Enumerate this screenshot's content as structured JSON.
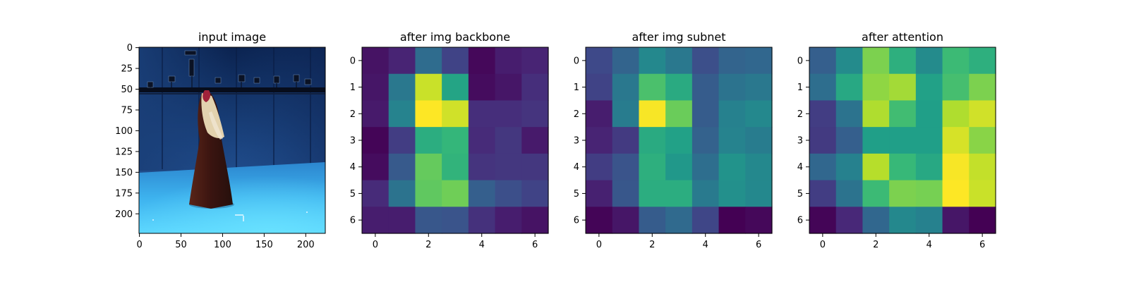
{
  "chart_data": [
    {
      "type": "image",
      "title": "input image",
      "x_ticks": [
        "0",
        "50",
        "100",
        "150",
        "200"
      ],
      "x_tick_values": [
        0,
        50,
        100,
        150,
        200
      ],
      "y_ticks": [
        "0",
        "25",
        "50",
        "75",
        "100",
        "125",
        "150",
        "175",
        "200"
      ],
      "y_tick_values": [
        0,
        25,
        50,
        75,
        100,
        125,
        150,
        175,
        200
      ],
      "extent": [
        -0.5,
        223.5,
        223.5,
        -0.5
      ],
      "colors": {
        "wall_dark": "#0e2a5a",
        "wall_light": "#23508f",
        "floor_near": "#59d8ff",
        "floor_far": "#2f8fd6",
        "figure": "#3a1410",
        "hair": "#e8d6b4",
        "rig": "#070d1c"
      }
    },
    {
      "type": "heatmap",
      "title": "after img backbone",
      "x_ticks": [
        "0",
        "2",
        "4",
        "6"
      ],
      "y_ticks": [
        "0",
        "1",
        "2",
        "3",
        "4",
        "5",
        "6"
      ],
      "values": [
        [
          0.05,
          0.1,
          0.35,
          0.2,
          0.02,
          0.08,
          0.1
        ],
        [
          0.06,
          0.4,
          0.92,
          0.58,
          0.03,
          0.06,
          0.13
        ],
        [
          0.07,
          0.45,
          1.0,
          0.93,
          0.13,
          0.13,
          0.15
        ],
        [
          0.01,
          0.18,
          0.62,
          0.66,
          0.12,
          0.16,
          0.07
        ],
        [
          0.03,
          0.28,
          0.76,
          0.65,
          0.15,
          0.16,
          0.16
        ],
        [
          0.12,
          0.38,
          0.75,
          0.78,
          0.3,
          0.24,
          0.2
        ],
        [
          0.08,
          0.08,
          0.27,
          0.26,
          0.14,
          0.08,
          0.05
        ]
      ]
    },
    {
      "type": "heatmap",
      "title": "after img subnet",
      "x_ticks": [
        "0",
        "2",
        "4",
        "6"
      ],
      "y_ticks": [
        "0",
        "1",
        "2",
        "3",
        "4",
        "5",
        "6"
      ],
      "values": [
        [
          0.22,
          0.32,
          0.47,
          0.4,
          0.24,
          0.32,
          0.33
        ],
        [
          0.2,
          0.4,
          0.71,
          0.61,
          0.29,
          0.38,
          0.4
        ],
        [
          0.08,
          0.42,
          0.99,
          0.77,
          0.29,
          0.44,
          0.47
        ],
        [
          0.1,
          0.17,
          0.61,
          0.57,
          0.31,
          0.45,
          0.42
        ],
        [
          0.18,
          0.26,
          0.63,
          0.53,
          0.36,
          0.51,
          0.47
        ],
        [
          0.09,
          0.27,
          0.62,
          0.62,
          0.41,
          0.5,
          0.47
        ],
        [
          0.01,
          0.06,
          0.29,
          0.34,
          0.21,
          0.0,
          0.02
        ]
      ]
    },
    {
      "type": "heatmap",
      "title": "after attention",
      "x_ticks": [
        "0",
        "2",
        "4",
        "6"
      ],
      "y_ticks": [
        "0",
        "1",
        "2",
        "3",
        "4",
        "5",
        "6"
      ],
      "values": [
        [
          0.3,
          0.48,
          0.8,
          0.63,
          0.48,
          0.68,
          0.63
        ],
        [
          0.36,
          0.6,
          0.83,
          0.86,
          0.57,
          0.7,
          0.8
        ],
        [
          0.18,
          0.38,
          0.88,
          0.69,
          0.56,
          0.88,
          0.93
        ],
        [
          0.17,
          0.3,
          0.56,
          0.56,
          0.56,
          0.94,
          0.82
        ],
        [
          0.33,
          0.44,
          0.89,
          0.67,
          0.6,
          0.99,
          0.91
        ],
        [
          0.18,
          0.38,
          0.68,
          0.8,
          0.79,
          1.0,
          0.92
        ],
        [
          0.01,
          0.11,
          0.33,
          0.47,
          0.44,
          0.06,
          0.0
        ]
      ]
    }
  ]
}
